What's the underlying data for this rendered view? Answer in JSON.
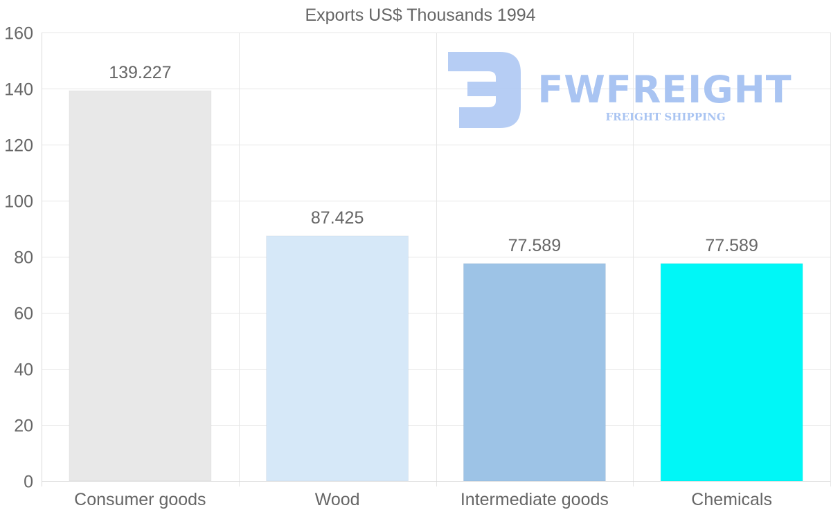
{
  "chart_data": {
    "type": "bar",
    "title": "Exports US$ Thousands 1994",
    "categories": [
      "Consumer goods",
      "Wood",
      "Intermediate goods",
      "Chemicals"
    ],
    "values": [
      139.227,
      87.425,
      77.589,
      77.589
    ],
    "value_labels": [
      "139.227",
      "87.425",
      "77.589",
      "77.589"
    ],
    "bar_colors": [
      "#e8e8e8",
      "#d6e8f8",
      "#9dc3e6",
      "#00f7f7"
    ],
    "ylim": [
      0,
      160
    ],
    "yticks": [
      0,
      20,
      40,
      60,
      80,
      100,
      120,
      140,
      160
    ],
    "xlabel": "",
    "ylabel": "",
    "grid": true,
    "legend": "none"
  },
  "watermark": {
    "brand": "FWFREIGHT",
    "tagline": "FREIGHT SHIPPING",
    "color": "#a9c4f2"
  }
}
